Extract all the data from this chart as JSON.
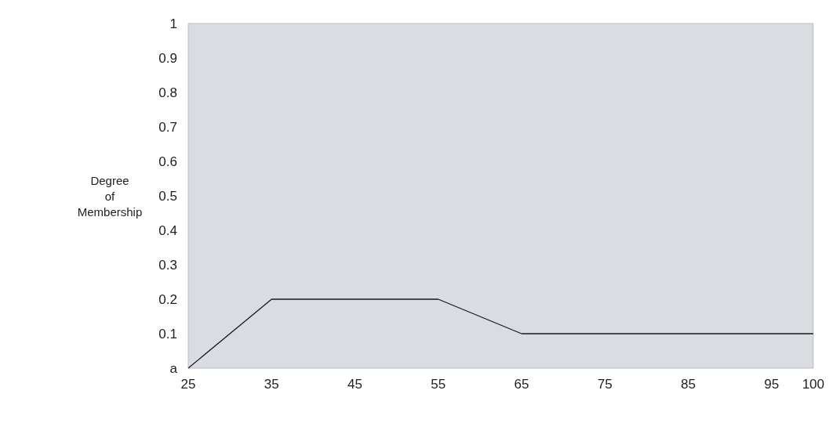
{
  "chart_data": {
    "type": "line",
    "ylabel": "Degree of Membership",
    "x": [
      25,
      35,
      55,
      65,
      100
    ],
    "series": [
      {
        "color": "#1a1a1a",
        "values": [
          0,
          0.2,
          0.2,
          0.1,
          0.1
        ]
      }
    ],
    "xlim": [
      25,
      100
    ],
    "xticks": [
      25,
      35,
      45,
      55,
      65,
      75,
      85,
      95,
      100
    ],
    "ylim": [
      0,
      1
    ],
    "yticks": [
      {
        "value": 0,
        "label": "a"
      },
      0.1,
      0.2,
      0.3,
      0.4,
      0.5,
      0.6,
      0.7,
      0.8,
      0.9,
      1
    ],
    "grid": false,
    "marker": "none",
    "line_style": "solid"
  }
}
